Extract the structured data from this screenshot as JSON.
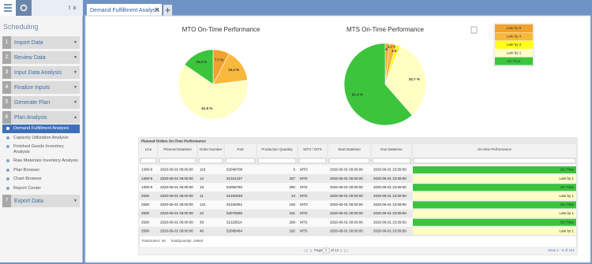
{
  "sidebar": {
    "title": "Scheduling",
    "steps": [
      {
        "number": "1",
        "label": "Import Data"
      },
      {
        "number": "2",
        "label": "Review Data"
      },
      {
        "number": "3",
        "label": "Input Data Analysis"
      },
      {
        "number": "4",
        "label": "Finalize Inputs"
      },
      {
        "number": "5",
        "label": "Generate Plan"
      },
      {
        "number": "6",
        "label": "Plan Analysis"
      },
      {
        "number": "7",
        "label": "Export Data"
      }
    ],
    "sub_items": [
      "Demand Fulfillment Analysis",
      "Capacity Utilization Analysis",
      "Finished Goods Inventory Analysis",
      "Raw Materials Inventory Analysis",
      "Plan Browser",
      "Chart Browser",
      "Report Center"
    ]
  },
  "tab": "Demand Fulfillment Analysis",
  "pies": [
    {
      "type": "pie",
      "title": "MTO On-Time Performance",
      "values": [
        7.7,
        15.4,
        61.5,
        15.4
      ],
      "value_labels": [
        "7.7 %",
        "15.4 %",
        "61.5 %",
        "15.4 %"
      ],
      "colors": [
        "#f0a22e",
        "#f7b83c",
        "#ffffc4",
        "#3cc43c"
      ]
    },
    {
      "type": "pie",
      "title": "MTS On-Time Performance",
      "values": [
        1.6,
        2.7,
        1.6,
        32.7,
        61.4
      ],
      "value_labels": [
        "1.6 %",
        "2.7 %",
        "1.6 %",
        "32.7 %",
        "61.4 %"
      ],
      "colors": [
        "#f0a22e",
        "#f7b83c",
        "#ffff1a",
        "#ffffc4",
        "#3cc43c"
      ]
    }
  ],
  "legend": [
    {
      "name": "Late by 5",
      "color": "#f0a22e"
    },
    {
      "name": "Late by 4",
      "color": "#f7b83c"
    },
    {
      "name": "Late by 2",
      "color": "#ffff1a"
    },
    {
      "name": "Late by 1",
      "color": "#ffffc4"
    },
    {
      "name": "On Time",
      "color": "#3cc43c"
    }
  ],
  "table": {
    "title": "Planned Orders On-Time Performance",
    "columns": [
      "Line",
      "Planned Datetime",
      "Order Number",
      "Part",
      "Production Quantity",
      "MTO / MTS",
      "Start Datetime",
      "Due Datetime",
      "On-time Performance"
    ],
    "rows": [
      [
        "1300-9",
        "2020-06-01 06:00:00",
        "119",
        "52048708",
        "5",
        "MTO",
        "2020-06-01 00:00:00",
        "2020-06-01 23:59:59",
        "On Time"
      ],
      [
        "1300-9",
        "2020-06-01 06:00:00",
        "12",
        "52151437",
        "257",
        "MTS",
        "2020-06-01 00:00:00",
        "2020-06-01 23:59:59",
        "Late by 1"
      ],
      [
        "1300-9",
        "2020-06-01 06:00:00",
        "19",
        "52056750",
        "280",
        "MTS",
        "2020-06-01 00:00:00",
        "2020-06-01 23:59:59",
        "On Time"
      ],
      [
        "2500",
        "2020-06-01 06:00:00",
        "11",
        "52150049",
        "34",
        "MTS",
        "2020-06-01 00:00:00",
        "2020-06-01 23:59:59",
        "Late by 1"
      ],
      [
        "2500",
        "2020-06-01 06:00:00",
        "121",
        "52150051",
        "165",
        "MTO",
        "2020-06-01 00:00:00",
        "2020-06-01 23:59:59",
        "On Time"
      ],
      [
        "2500",
        "2020-06-01 06:00:00",
        "22",
        "52076696",
        "161",
        "MTS",
        "2020-06-01 00:00:00",
        "2020-06-01 23:59:59",
        "Late by 1"
      ],
      [
        "2500",
        "2020-06-01 06:00:00",
        "39",
        "52116514",
        "288",
        "MTS",
        "2020-06-01 00:00:00",
        "2020-06-01 23:59:59",
        "On Time"
      ],
      [
        "2500",
        "2020-06-01 06:00:00",
        "46",
        "52068464",
        "182",
        "MTS",
        "2020-06-01 00:00:00",
        "2020-06-01 23:59:59",
        "Late by 1"
      ]
    ],
    "total_orders": "TotalOrders: 68",
    "total_quantity": "TotalQuantity: 18860",
    "page_label": "Page",
    "page_number": "1",
    "page_count": "of 13",
    "view": "View 1 - 8 of 101"
  }
}
